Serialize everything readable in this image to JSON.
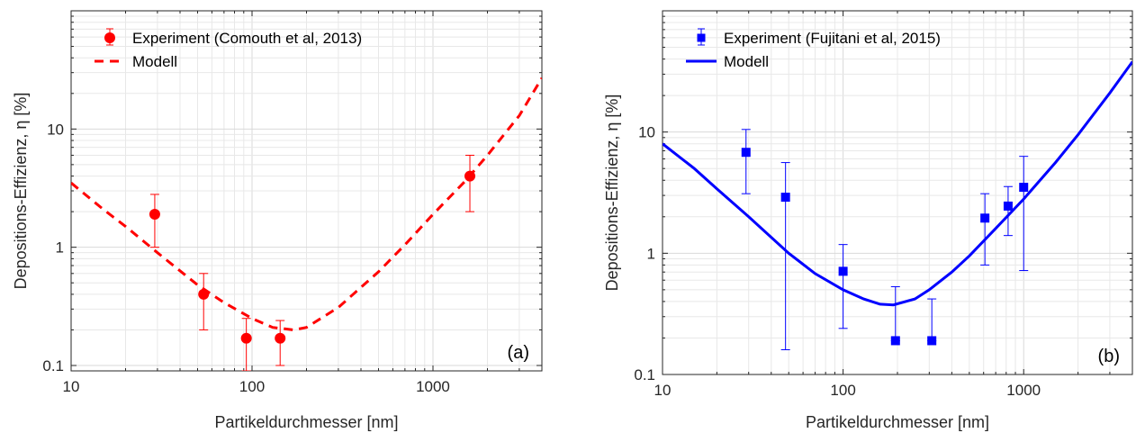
{
  "chart_data": [
    {
      "type": "scatter",
      "xlabel": "Partikeldurchmesser [nm]",
      "ylabel": "Depositions-Effizienz, η [%]",
      "xscale": "log",
      "yscale": "log",
      "xlim": [
        10,
        4000
      ],
      "ylim": [
        0.09,
        100
      ],
      "xtick_labels": [
        "10",
        "100",
        "1000"
      ],
      "ytick_labels": [
        "0.1",
        "1",
        "10"
      ],
      "grid": true,
      "legend_position": "top-left",
      "panel_label": "(a)",
      "color": "#ff0000",
      "series": [
        {
          "name": "Experiment (Comouth et al, 2013)",
          "kind": "scatter-errorbar",
          "marker": "circle",
          "x": [
            29,
            54,
            93,
            143,
            1600
          ],
          "y": [
            1.9,
            0.4,
            0.17,
            0.17,
            4.0
          ],
          "yerr_low": [
            1.0,
            0.2,
            0.09,
            0.1,
            2.0
          ],
          "yerr_high": [
            2.8,
            0.6,
            0.25,
            0.24,
            6.0
          ]
        },
        {
          "name": "Modell",
          "kind": "line",
          "line_style": "dashed",
          "x": [
            10,
            15,
            20,
            30,
            50,
            70,
            100,
            130,
            170,
            200,
            300,
            500,
            700,
            1000,
            1500,
            2000,
            3000,
            4000
          ],
          "y": [
            3.5,
            2.1,
            1.5,
            0.9,
            0.48,
            0.34,
            0.25,
            0.21,
            0.2,
            0.21,
            0.31,
            0.62,
            1.05,
            1.9,
            3.6,
            6.0,
            13.0,
            27.0
          ]
        }
      ]
    },
    {
      "type": "scatter",
      "xlabel": "Partikeldurchmesser [nm]",
      "ylabel": "Depositions-Effizienz, η [%]",
      "xscale": "log",
      "yscale": "log",
      "xlim": [
        10,
        4000
      ],
      "ylim": [
        0.1,
        100
      ],
      "xtick_labels": [
        "10",
        "100",
        "1000"
      ],
      "ytick_labels": [
        "0.1",
        "1",
        "10"
      ],
      "grid": true,
      "legend_position": "top-left",
      "panel_label": "(b)",
      "color": "#0000ff",
      "series": [
        {
          "name": "Experiment (Fujitani et al, 2015)",
          "kind": "scatter-errorbar",
          "marker": "square",
          "x": [
            29,
            48,
            100,
            195,
            310,
            610,
            820,
            1000
          ],
          "y": [
            6.8,
            2.9,
            0.71,
            0.19,
            0.19,
            1.95,
            2.45,
            3.5
          ],
          "yerr_low": [
            3.1,
            0.16,
            0.24,
            0.19,
            0.19,
            0.8,
            1.4,
            0.72
          ],
          "yerr_high": [
            10.5,
            5.6,
            1.18,
            0.53,
            0.42,
            3.1,
            3.55,
            6.3
          ]
        },
        {
          "name": "Modell",
          "kind": "line",
          "line_style": "solid",
          "x": [
            10,
            15,
            20,
            30,
            50,
            70,
            100,
            130,
            160,
            190,
            250,
            300,
            400,
            500,
            700,
            1000,
            1500,
            2000,
            3000,
            4000
          ],
          "y": [
            8.0,
            5.0,
            3.4,
            2.0,
            1.0,
            0.68,
            0.5,
            0.42,
            0.38,
            0.375,
            0.42,
            0.5,
            0.7,
            0.95,
            1.6,
            2.8,
            5.6,
            9.5,
            21.0,
            38.0
          ]
        }
      ]
    }
  ]
}
